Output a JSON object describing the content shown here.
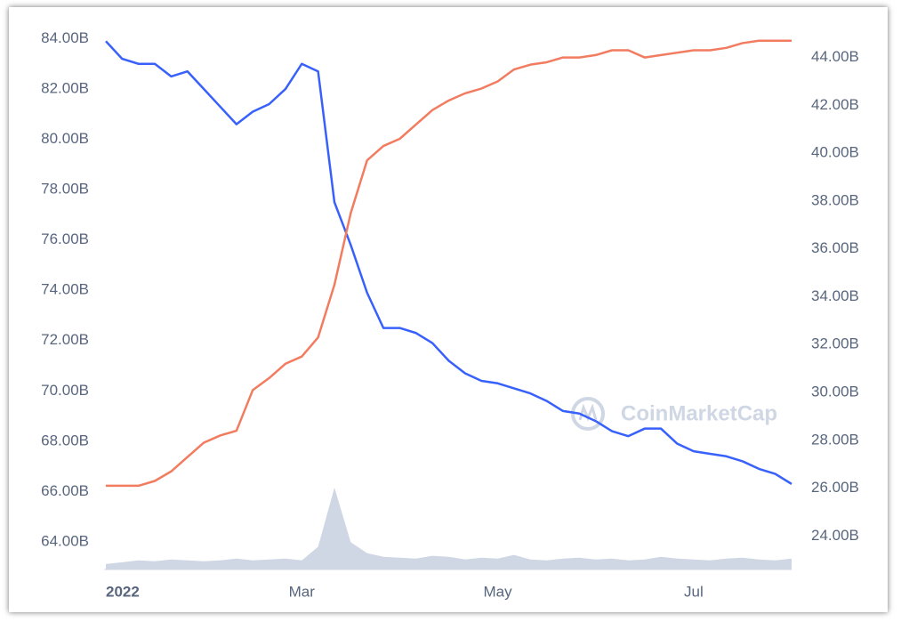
{
  "chart_data": {
    "type": "line",
    "x": [
      "2022",
      null,
      null,
      null,
      null,
      null,
      null,
      null,
      null,
      null,
      null,
      null,
      "Mar",
      null,
      null,
      null,
      null,
      null,
      null,
      null,
      null,
      null,
      null,
      null,
      "May",
      null,
      null,
      null,
      null,
      null,
      null,
      null,
      null,
      null,
      null,
      null,
      "Jul",
      null,
      null,
      null,
      null,
      null,
      null
    ],
    "series": [
      {
        "color": "#3861fb",
        "axis": "y",
        "values": [
          83.9,
          83.2,
          83.0,
          83.0,
          82.5,
          82.7,
          82.0,
          81.3,
          80.6,
          81.1,
          81.4,
          82.0,
          83.0,
          82.7,
          77.5,
          75.8,
          73.9,
          72.5,
          72.5,
          72.3,
          71.9,
          71.2,
          70.7,
          70.4,
          70.3,
          70.1,
          69.9,
          69.6,
          69.2,
          69.1,
          68.8,
          68.4,
          68.2,
          68.5,
          68.5,
          67.9,
          67.6,
          67.5,
          67.4,
          67.2,
          66.9,
          66.7,
          66.3
        ]
      },
      {
        "color": "#f27c5f",
        "axis": "y2",
        "values": [
          26.1,
          26.1,
          26.1,
          26.3,
          26.7,
          27.3,
          27.9,
          28.2,
          28.4,
          30.1,
          30.6,
          31.2,
          31.5,
          32.3,
          34.5,
          37.5,
          39.7,
          40.3,
          40.6,
          41.2,
          41.8,
          42.2,
          42.5,
          42.7,
          43.0,
          43.5,
          43.7,
          43.8,
          44.0,
          44.0,
          44.1,
          44.3,
          44.3,
          44.0,
          44.1,
          44.2,
          44.3,
          44.3,
          44.4,
          44.6,
          44.7,
          44.7,
          44.7
        ]
      },
      {
        "color": "#cfd6e4",
        "axis": "volume",
        "values": [
          6,
          8,
          10,
          9,
          11,
          10,
          9,
          10,
          12,
          10,
          11,
          12,
          10,
          25,
          90,
          30,
          18,
          14,
          13,
          12,
          15,
          14,
          11,
          13,
          12,
          16,
          11,
          10,
          12,
          13,
          11,
          12,
          10,
          11,
          14,
          12,
          11,
          10,
          12,
          13,
          11,
          10,
          12
        ]
      }
    ],
    "ylim": [
      62.9,
      84.3
    ],
    "yticks": [
      {
        "value": 64,
        "label": "64.00B"
      },
      {
        "value": 66,
        "label": "66.00B"
      },
      {
        "value": 68,
        "label": "68.00B"
      },
      {
        "value": 70,
        "label": "70.00B"
      },
      {
        "value": 72,
        "label": "72.00B"
      },
      {
        "value": 74,
        "label": "74.00B"
      },
      {
        "value": 76,
        "label": "76.00B"
      },
      {
        "value": 78,
        "label": "78.00B"
      },
      {
        "value": 80,
        "label": "80.00B"
      },
      {
        "value": 82,
        "label": "82.00B"
      },
      {
        "value": 84,
        "label": "84.00B"
      }
    ],
    "y2lim": [
      22.6,
      45.1
    ],
    "y2ticks": [
      {
        "value": 24,
        "label": "24.00B"
      },
      {
        "value": 26,
        "label": "26.00B"
      },
      {
        "value": 28,
        "label": "28.00B"
      },
      {
        "value": 30,
        "label": "30.00B"
      },
      {
        "value": 32,
        "label": "32.00B"
      },
      {
        "value": 34,
        "label": "34.00B"
      },
      {
        "value": 36,
        "label": "36.00B"
      },
      {
        "value": 38,
        "label": "38.00B"
      },
      {
        "value": 40,
        "label": "40.00B"
      },
      {
        "value": 42,
        "label": "42.00B"
      },
      {
        "value": 44,
        "label": "44.00B"
      }
    ],
    "grid": false,
    "watermark": "CoinMarketCap"
  }
}
